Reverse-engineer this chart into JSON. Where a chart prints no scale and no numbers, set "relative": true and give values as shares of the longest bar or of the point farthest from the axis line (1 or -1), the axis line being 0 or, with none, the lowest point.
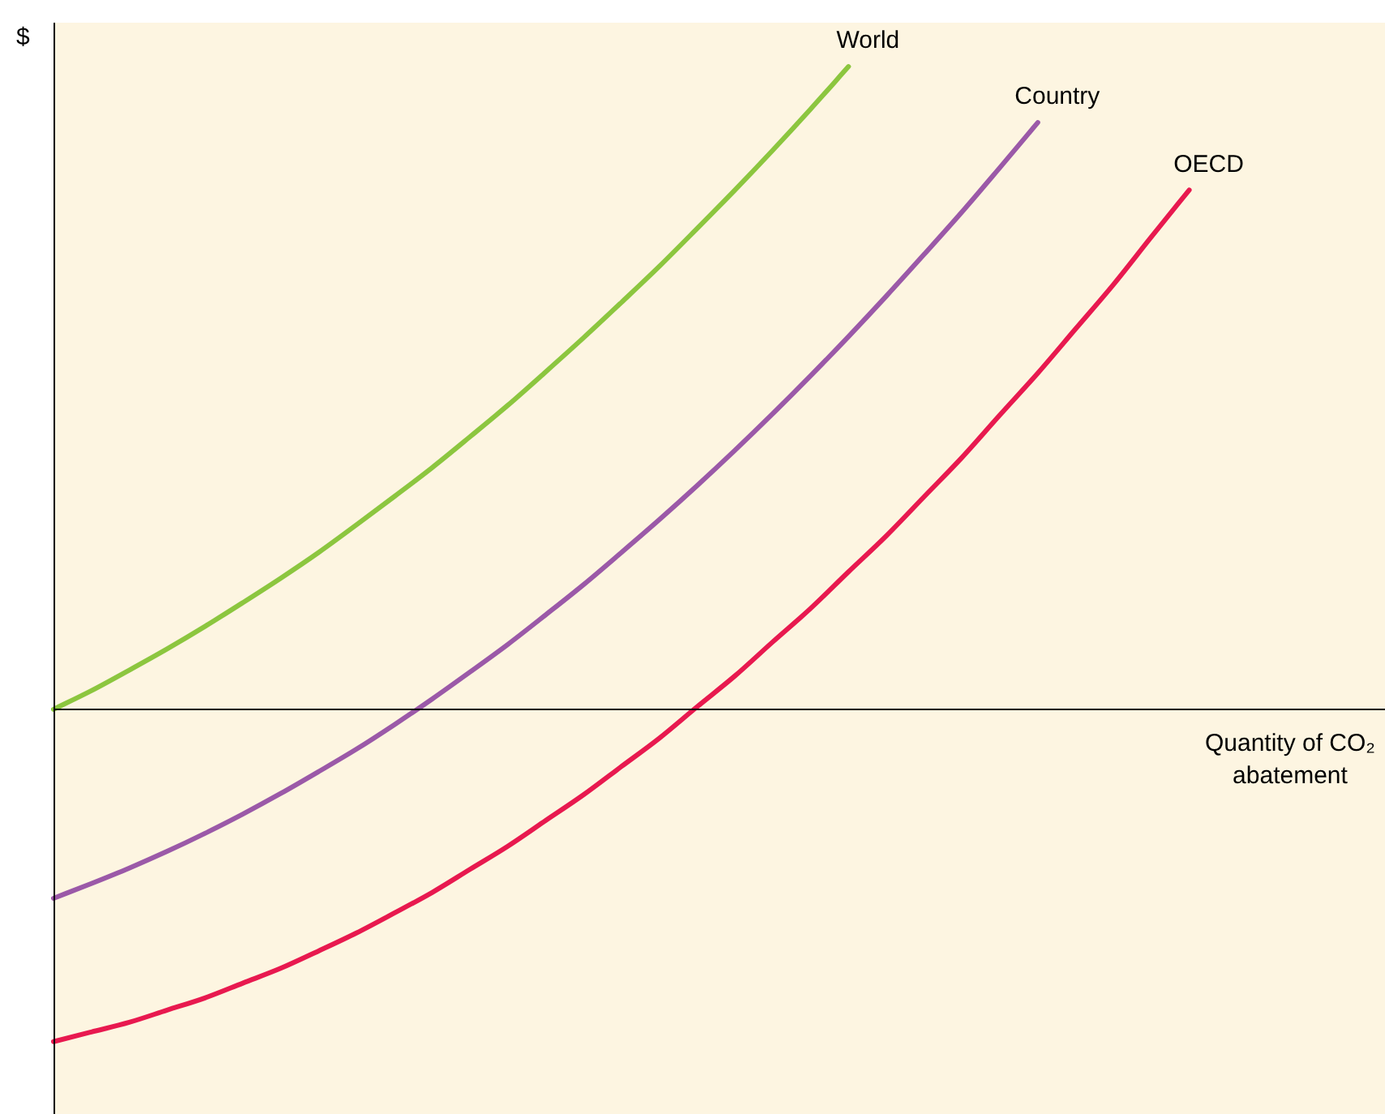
{
  "chart_data": {
    "type": "line",
    "relative": true,
    "ylabel": "$",
    "xlabel": "Quantity of CO₂ abatement",
    "legend": false,
    "marker": "none",
    "line_style": "solid",
    "categories": [
      null,
      null,
      null,
      null,
      null,
      null,
      null,
      null,
      null,
      null,
      null,
      null,
      null,
      null,
      null,
      null,
      null,
      null,
      null,
      null,
      null,
      null,
      null,
      null,
      null,
      null,
      null,
      null,
      null,
      null,
      null,
      null,
      null,
      null,
      null,
      null
    ],
    "series": [
      {
        "name": "World",
        "color": "#8cc63f",
        "values": [
          0,
          0.029,
          0.061,
          0.094,
          0.129,
          0.166,
          0.204,
          0.244,
          0.287,
          0.331,
          0.376,
          0.424,
          0.473,
          0.525,
          0.578,
          0.633,
          0.689,
          0.748,
          0.808,
          0.87,
          0.934,
          1.0,
          null,
          null,
          null,
          null,
          null,
          null,
          null,
          null,
          null,
          null,
          null,
          null,
          null,
          null
        ]
      },
      {
        "name": "Country",
        "color": "#9b59a8",
        "values": [
          -0.294,
          -0.271,
          -0.247,
          -0.221,
          -0.193,
          -0.163,
          -0.131,
          -0.097,
          -0.062,
          -0.024,
          0.016,
          0.058,
          0.101,
          0.147,
          0.194,
          0.244,
          0.295,
          0.348,
          0.403,
          0.46,
          0.519,
          0.58,
          0.643,
          0.708,
          0.774,
          0.843,
          0.913,
          null,
          null,
          null,
          null,
          null,
          null,
          null,
          null,
          null
        ]
      },
      {
        "name": "OECD",
        "color": "#e8194f",
        "values": [
          -0.517,
          -0.502,
          -0.487,
          -0.468,
          -0.449,
          -0.426,
          -0.403,
          -0.376,
          -0.348,
          -0.317,
          -0.285,
          -0.249,
          -0.213,
          -0.173,
          -0.133,
          -0.089,
          -0.045,
          0.004,
          0.052,
          0.105,
          0.157,
          0.214,
          0.27,
          0.331,
          0.392,
          0.458,
          0.523,
          0.592,
          0.661,
          0.735,
          0.808,
          null,
          null,
          null,
          null,
          null
        ]
      }
    ]
  }
}
